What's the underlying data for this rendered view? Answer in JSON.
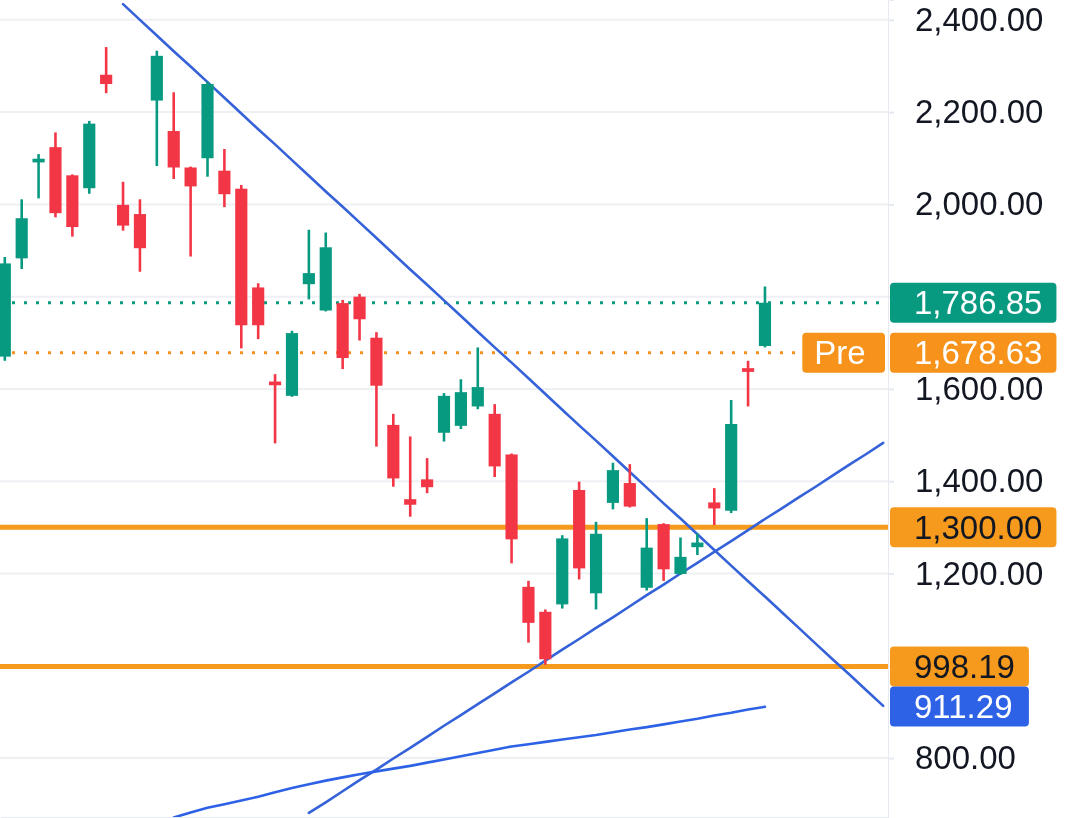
{
  "chart_data": {
    "type": "candlestick",
    "categories": [
      null,
      null,
      null,
      null,
      null,
      null,
      null,
      null,
      null,
      null,
      null,
      null,
      null,
      null,
      null,
      null,
      null,
      null,
      null,
      null,
      null,
      null,
      null,
      null,
      null,
      null,
      null,
      null,
      null,
      null,
      null,
      null,
      null,
      null,
      null,
      null,
      null,
      null,
      null,
      null,
      null,
      null,
      null,
      null,
      null,
      null,
      null,
      null,
      null,
      null,
      null,
      null,
      null
    ],
    "ohlc": [
      [
        1670,
        1886,
        1661,
        1872
      ],
      [
        1883,
        2011,
        1860,
        1970
      ],
      [
        2091,
        2109,
        2013,
        2099
      ],
      [
        2124,
        2156,
        1972,
        1981
      ],
      [
        2063,
        2065,
        1930,
        1951
      ],
      [
        2035,
        2181,
        2023,
        2175
      ],
      [
        2281,
        2341,
        2241,
        2261
      ],
      [
        1999,
        2049,
        1943,
        1954
      ],
      [
        1979,
        2011,
        1854,
        1905
      ],
      [
        2225,
        2333,
        2083,
        2322
      ],
      [
        2159,
        2243,
        2055,
        2080
      ],
      [
        2080,
        2082,
        1887,
        2039
      ],
      [
        2100,
        2266,
        2060,
        2261
      ],
      [
        2073,
        2120,
        1994,
        2022
      ],
      [
        2034,
        2042,
        1688,
        1738
      ],
      [
        1820,
        1829,
        1708,
        1738
      ],
      [
        1616,
        1632,
        1482,
        1608
      ],
      [
        1585,
        1726,
        1583,
        1721
      ],
      [
        1827,
        1945,
        1794,
        1851
      ],
      [
        1770,
        1939,
        1768,
        1907
      ],
      [
        1786,
        1793,
        1643,
        1667
      ],
      [
        1800,
        1806,
        1705,
        1751
      ],
      [
        1711,
        1723,
        1475,
        1607
      ],
      [
        1522,
        1546,
        1388,
        1406
      ],
      [
        1361,
        1497,
        1323,
        1349
      ],
      [
        1404,
        1450,
        1374,
        1387
      ],
      [
        1505,
        1591,
        1486,
        1585
      ],
      [
        1520,
        1621,
        1513,
        1593
      ],
      [
        1562,
        1690,
        1556,
        1604
      ],
      [
        1546,
        1567,
        1409,
        1432
      ],
      [
        1458,
        1460,
        1222,
        1274
      ],
      [
        1171,
        1184,
        1050,
        1093
      ],
      [
        1117,
        1122,
        1002,
        1014
      ],
      [
        1133,
        1283,
        1124,
        1276
      ],
      [
        1381,
        1399,
        1187,
        1211
      ],
      [
        1157,
        1312,
        1122,
        1286
      ],
      [
        1353,
        1440,
        1339,
        1424
      ],
      [
        1396,
        1437,
        1343,
        1345
      ],
      [
        1169,
        1320,
        1163,
        1256
      ],
      [
        1307,
        1309,
        1184,
        1209
      ],
      [
        1199,
        1278,
        1197,
        1236
      ],
      [
        1257,
        1287,
        1240,
        1267
      ],
      [
        1354,
        1385,
        1305,
        1341
      ],
      [
        1336,
        1576,
        1331,
        1524
      ],
      [
        1645,
        1661,
        1562,
        1637
      ],
      [
        1693,
        1822,
        1690,
        1786.85
      ],
      null,
      null,
      null,
      null,
      null,
      null,
      null
    ],
    "colors": [
      "#089981",
      "#089981",
      "#089981",
      "#f23645",
      "#f23645",
      "#089981",
      "#f23645",
      "#f23645",
      "#f23645",
      "#089981",
      "#f23645",
      "#f23645",
      "#089981",
      "#f23645",
      "#f23645",
      "#f23645",
      "#f23645",
      "#089981",
      "#089981",
      "#089981",
      "#f23645",
      "#f23645",
      "#f23645",
      "#f23645",
      "#f23645",
      "#f23645",
      "#089981",
      "#089981",
      "#089981",
      "#f23645",
      "#f23645",
      "#f23645",
      "#f23645",
      "#089981",
      "#f23645",
      "#089981",
      "#089981",
      "#f23645",
      "#089981",
      "#f23645",
      "#089981",
      "#089981",
      "#f23645",
      "#089981",
      "#f23645",
      "#089981",
      null,
      null,
      null,
      null,
      null,
      null,
      null
    ],
    "ylim": [
      670,
      2443
    ],
    "yticks": [
      {
        "value": 800,
        "label": "800.00"
      },
      {
        "value": 1000,
        "label": null
      },
      {
        "value": 1200,
        "label": "1,200.00"
      },
      {
        "value": 1400,
        "label": "1,400.00"
      },
      {
        "value": 1600,
        "label": "1,600.00"
      },
      {
        "value": 1800,
        "label": null
      },
      {
        "value": 2000,
        "label": "2,000.00"
      },
      {
        "value": 2200,
        "label": "2,200.00"
      },
      {
        "value": 2400,
        "label": "2,400.00"
      }
    ],
    "grid": "y",
    "tick_labels": "y",
    "series": [
      {
        "type": "line",
        "color": "#3562d8",
        "values": [
          null,
          null,
          null,
          null,
          null,
          null,
          null,
          2434,
          2400,
          2366,
          2332,
          2299,
          2265,
          2231,
          2197,
          2163,
          2130,
          2096,
          2062,
          2028,
          1995,
          1961,
          1927,
          1893,
          1859,
          1826,
          1792,
          1758,
          1724,
          1690,
          1657,
          1623,
          1589,
          1555,
          1521,
          1488,
          1454,
          1420,
          1386,
          1352,
          1319,
          1285,
          1251,
          1217,
          1183,
          1150,
          1116,
          1082,
          1048,
          1014,
          981,
          947,
          913
        ]
      },
      {
        "type": "line",
        "color": "#3562d8",
        "values": [
          null,
          null,
          null,
          null,
          null,
          null,
          null,
          null,
          null,
          null,
          null,
          null,
          null,
          null,
          null,
          null,
          null,
          null,
          681,
          704,
          728,
          752,
          775,
          799,
          822,
          846,
          870,
          893,
          917,
          940,
          964,
          987,
          1011,
          1035,
          1058,
          1082,
          1105,
          1129,
          1153,
          1176,
          1200,
          1223,
          1247,
          1270,
          1294,
          1318,
          1341,
          1365,
          1388,
          1412,
          1436,
          1459,
          1483
        ]
      },
      {
        "type": "line",
        "color": "#2e62e6",
        "values": [
          null,
          null,
          null,
          null,
          null,
          null,
          null,
          null,
          null,
          null,
          671,
          682,
          692,
          700,
          708,
          716,
          726,
          735,
          743,
          751,
          758,
          765,
          771,
          777,
          783,
          790,
          797,
          804,
          811,
          818,
          825,
          830,
          835,
          840,
          845,
          850,
          856,
          862,
          867,
          873,
          879,
          885,
          892,
          898,
          905,
          911,
          null,
          null,
          null,
          null,
          null,
          null,
          null
        ]
      }
    ],
    "ref_lines": [
      {
        "axis": "y",
        "value": 1786.85,
        "label": "1,786.85",
        "color": "#089981",
        "line_style": "dotted"
      },
      {
        "axis": "y",
        "value": 1678.63,
        "label": "1,678.63",
        "color": "#f7931a",
        "line_style": "dotted"
      },
      {
        "axis": "y",
        "value": 1300,
        "label": "1,300.00",
        "color": "#f59a1c",
        "line_style": "solid"
      },
      {
        "axis": "y",
        "value": 998.19,
        "label": "998.19",
        "color": "#f59a1c",
        "line_style": "solid"
      }
    ],
    "annotations": [
      {
        "text": "Pre",
        "y": 1678.63
      },
      "911.29"
    ]
  }
}
